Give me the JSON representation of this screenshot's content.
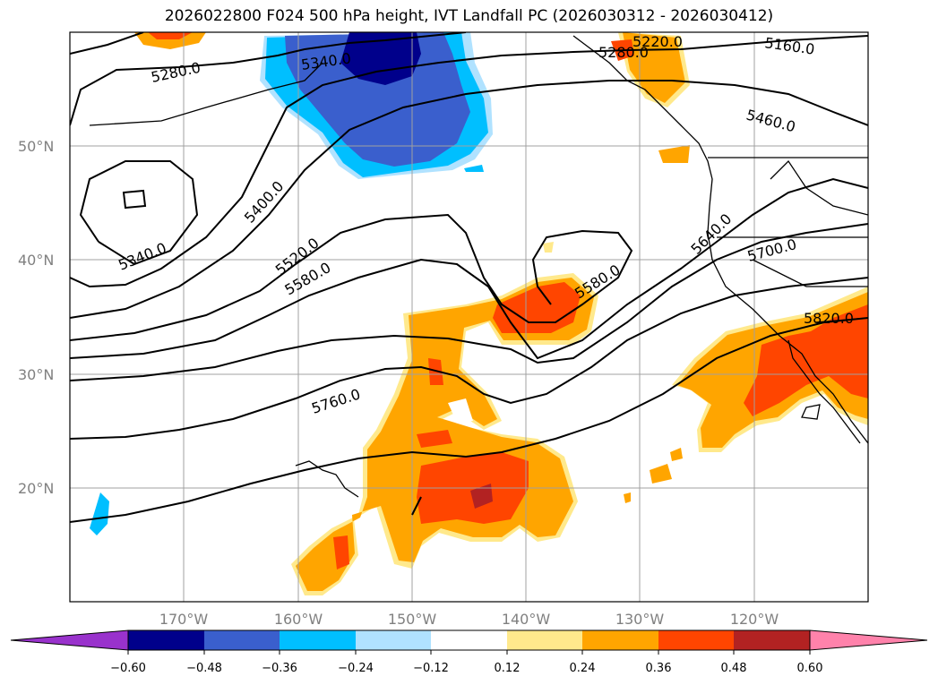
{
  "title": "2026022800 F024 500 hPa height, IVT Landfall PC (2026030312 - 2026030412)",
  "lat_labels": [
    "50°N",
    "40°N",
    "30°N",
    "20°N"
  ],
  "lon_labels": [
    "170°W",
    "160°W",
    "150°W",
    "140°W",
    "130°W",
    "120°W"
  ],
  "contour_labels": [
    "5280.0",
    "5340.0",
    "5220.0",
    "5160.0",
    "5460.0",
    "5280.0",
    "5400.0",
    "5340.0",
    "5520.0",
    "5580.0",
    "5580.0",
    "5640.0",
    "5700.0",
    "5760.0",
    "5820.0"
  ],
  "colorbar": {
    "ticks": [
      "−0.60",
      "−0.48",
      "−0.36",
      "−0.24",
      "−0.12",
      "0.12",
      "0.24",
      "0.36",
      "0.48",
      "0.60"
    ],
    "colors": [
      "#9932CC",
      "#00008B",
      "#3A5FCD",
      "#00BFFF",
      "#B0E2FF",
      "#FFFFFF",
      "#FFE98C",
      "#FFA500",
      "#FF4500",
      "#B22222",
      "#FF82AB"
    ]
  },
  "colors": {
    "pos_low": "#FFE98C",
    "pos_mid": "#FFA500",
    "pos_high": "#FF4500",
    "pos_max": "#B22222",
    "neg_low": "#B0E2FF",
    "neg_mid": "#00BFFF",
    "neg_high": "#3A5FCD",
    "neg_max": "#00008B"
  }
}
